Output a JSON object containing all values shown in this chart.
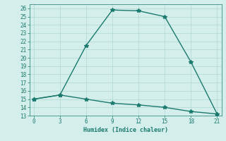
{
  "line1_x": [
    0,
    3,
    6,
    9,
    12,
    15,
    18,
    21
  ],
  "line1_y": [
    15,
    15.5,
    21.5,
    25.8,
    25.7,
    25.0,
    19.5,
    13.2
  ],
  "line2_x": [
    0,
    3,
    6,
    9,
    12,
    15,
    18,
    21
  ],
  "line2_y": [
    15,
    15.5,
    15.0,
    14.5,
    14.3,
    14.0,
    13.5,
    13.2
  ],
  "line_color": "#1a7a6e",
  "bg_color": "#d4eeeb",
  "grid_color": "#b0d8d3",
  "xlabel": "Humidex (Indice chaleur)",
  "xlim": [
    -0.5,
    21.5
  ],
  "ylim": [
    13,
    26.5
  ],
  "xticks": [
    0,
    3,
    6,
    9,
    12,
    15,
    18,
    21
  ],
  "yticks": [
    13,
    14,
    15,
    16,
    17,
    18,
    19,
    20,
    21,
    22,
    23,
    24,
    25,
    26
  ],
  "marker": "*",
  "markersize": 4,
  "linewidth": 1.0,
  "tick_fontsize": 5.5,
  "xlabel_fontsize": 6.0
}
